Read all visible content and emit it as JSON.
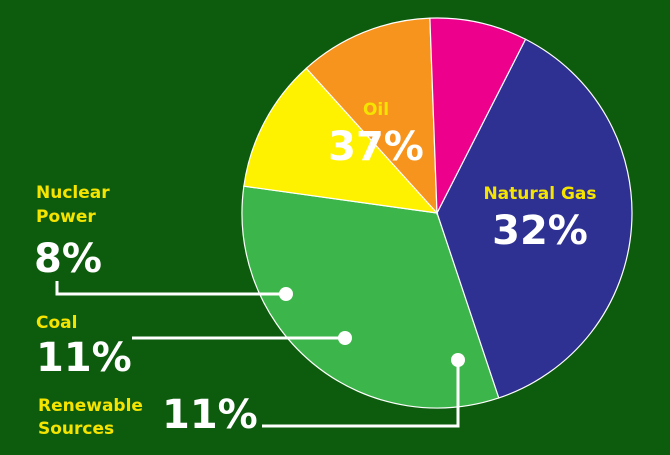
{
  "chart_data": {
    "type": "pie",
    "slices": [
      {
        "key": "oil",
        "label": "Oil",
        "label_lines": [
          "Oil"
        ],
        "value": 37,
        "value_label": "37%",
        "color": "#2e3192"
      },
      {
        "key": "gas",
        "label": "Natural Gas",
        "label_lines": [
          "Natural Gas"
        ],
        "value": 32,
        "value_label": "32%",
        "color": "#3cb54a"
      },
      {
        "key": "renewable",
        "label": "Renewable Sources",
        "label_lines": [
          "Renewable",
          "Sources"
        ],
        "value": 11,
        "value_label": "11%",
        "color": "#fff200"
      },
      {
        "key": "coal",
        "label": "Coal",
        "label_lines": [
          "Coal"
        ],
        "value": 11,
        "value_label": "11%",
        "color": "#f7941d"
      },
      {
        "key": "nuclear",
        "label": "Nuclear Power",
        "label_lines": [
          "Nuclear",
          "Power"
        ],
        "value": 8,
        "value_label": "8%",
        "color": "#ec008c"
      }
    ],
    "title": "",
    "legend": "none"
  },
  "colors": {
    "background": "#0d5c0d",
    "category_text": "#f5e400",
    "percent_text": "#ffffff",
    "leader_lines": "#ffffff"
  }
}
